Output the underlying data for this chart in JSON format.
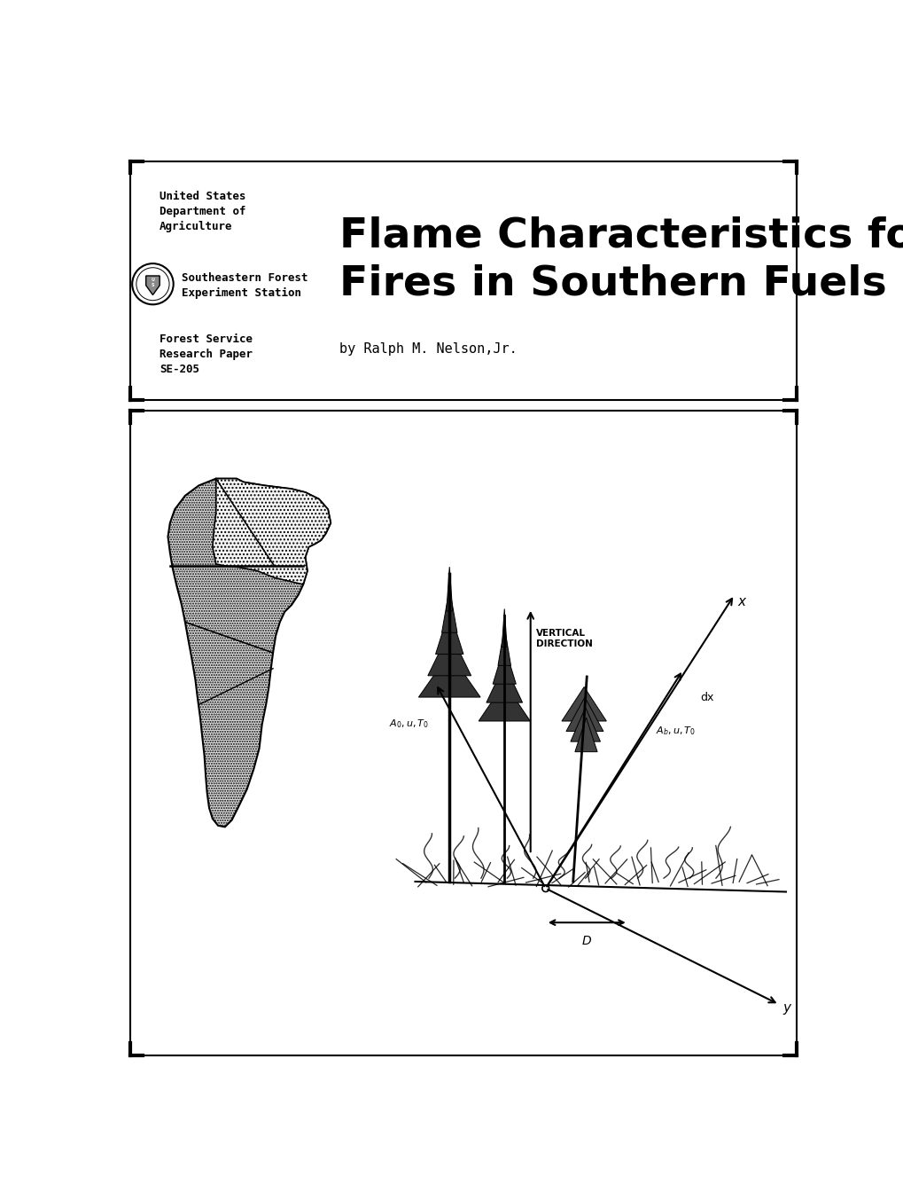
{
  "bg_color": "#ffffff",
  "title_line1": "Flame Characteristics for",
  "title_line2": "Fires in Southern Fuels",
  "usda_line1": "United States",
  "usda_line2": "Department of",
  "usda_line3": "Agriculture",
  "sefes_line1": "Southeastern Forest",
  "sefes_line2": "Experiment Station",
  "fs_line1": "Forest Service",
  "fs_line2": "Research Paper",
  "fs_line3": "SE-205",
  "author": "by Ralph M. Nelson,Jr.",
  "text_color": "#000000",
  "title_fontsize": 34,
  "header_fontsize": 9
}
